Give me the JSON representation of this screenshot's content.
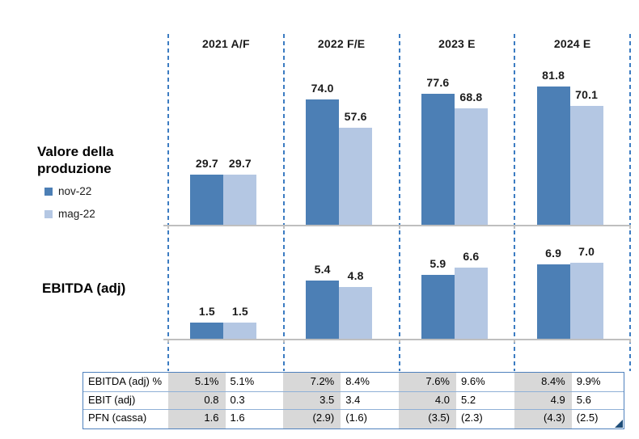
{
  "sections": [
    {
      "title": "Valore della produzione"
    },
    {
      "title": "EBITDA (adj)"
    }
  ],
  "legend": {
    "items": [
      {
        "label": "nov-22",
        "color": "#4c7fb5"
      },
      {
        "label": "mag-22",
        "color": "#b4c7e3"
      }
    ]
  },
  "colors": {
    "bar_dark": "#4c7fb5",
    "bar_light": "#b4c7e3",
    "dashed_line": "#3c7cc2",
    "axis": "#bfbfbf",
    "table_border": "#4f81bd",
    "table_row_line": "#8fb0d6",
    "cell_gray": "#d8d8d8",
    "corner_triangle": "#1f4e79",
    "text": "#1b1b1b"
  },
  "chart_data": [
    {
      "type": "bar",
      "title": "Valore della produzione",
      "categories": [
        "2021 A/F",
        "2022 F/E",
        "2023 E",
        "2024 E"
      ],
      "series": [
        {
          "name": "nov-22",
          "values": [
            29.7,
            74.0,
            77.6,
            81.8
          ]
        },
        {
          "name": "mag-22",
          "values": [
            29.7,
            57.6,
            68.8,
            70.1
          ]
        }
      ],
      "value_label_format": "one-decimal",
      "ylim": [
        0,
        90
      ],
      "grid": false,
      "legend_position": "left"
    },
    {
      "type": "bar",
      "title": "EBITDA (adj)",
      "categories": [
        "2021 A/F",
        "2022 F/E",
        "2023 E",
        "2024 E"
      ],
      "series": [
        {
          "name": "nov-22",
          "values": [
            1.5,
            5.4,
            5.9,
            6.9
          ]
        },
        {
          "name": "mag-22",
          "values": [
            1.5,
            4.8,
            6.6,
            7.0
          ]
        }
      ],
      "value_label_format": "one-decimal",
      "ylim": [
        0,
        8.5
      ],
      "grid": false,
      "legend_position": "none"
    },
    {
      "type": "table",
      "column_groups": [
        "2021 A/F",
        "2022 F/E",
        "2023 E",
        "2024 E"
      ],
      "sub_columns": [
        "nov-22",
        "mag-22"
      ],
      "rows": [
        {
          "label": "EBITDA (adj) %",
          "values": [
            "5.1%",
            "5.1%",
            "7.2%",
            "8.4%",
            "7.6%",
            "9.6%",
            "8.4%",
            "9.9%"
          ]
        },
        {
          "label": "EBIT (adj)",
          "values": [
            "0.8",
            "0.3",
            "3.5",
            "3.4",
            "4.0",
            "5.2",
            "4.9",
            "5.6"
          ]
        },
        {
          "label": "PFN (cassa)",
          "values": [
            "1.6",
            "1.6",
            "(2.9)",
            "(1.6)",
            "(3.5)",
            "(2.3)",
            "(4.3)",
            "(2.5)"
          ]
        }
      ]
    }
  ]
}
